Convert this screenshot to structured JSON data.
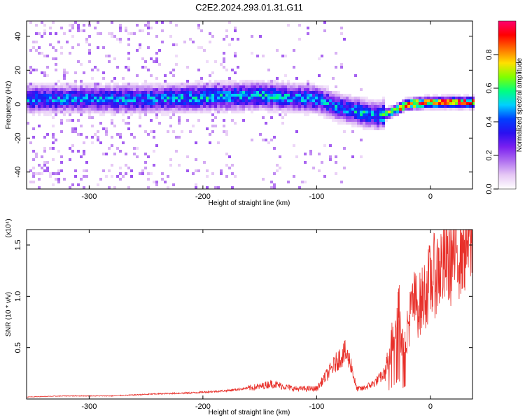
{
  "page_title": "C2E2.2024.293.01.31.G11",
  "chart_data": [
    {
      "type": "heatmap",
      "xlabel": "Height of straight line (km)",
      "ylabel": "Frequency (Hz)",
      "xlim": [
        -355,
        37
      ],
      "ylim": [
        -50,
        49
      ],
      "xticks": [
        -300,
        -200,
        -100,
        0
      ],
      "yticks": [
        -40,
        -20,
        0,
        20,
        40
      ],
      "colorbar": {
        "label": "Normalized spectral amplitude",
        "range": [
          0,
          1
        ],
        "ticks": [
          "0.0",
          "0.2",
          "0.4",
          "0.6",
          "0.8"
        ],
        "tick_values": [
          0.0,
          0.2,
          0.4,
          0.6,
          0.8
        ],
        "colormap": [
          "#ffffff",
          "#e6c8f5",
          "#b070f0",
          "#7a20f0",
          "#2a10f0",
          "#0040ff",
          "#00d0ff",
          "#00ff80",
          "#80ff00",
          "#ffe000",
          "#ff7000",
          "#ff0000",
          "#ff0070"
        ]
      },
      "ridge": {
        "x": [
          -250,
          -200,
          -150,
          -100,
          -80,
          -60,
          -45,
          -35,
          -20,
          0,
          20,
          37
        ],
        "frequency": [
          3,
          4,
          5,
          3,
          -2,
          -5,
          -7,
          -5,
          0,
          1,
          1,
          1
        ],
        "peak_amplitude": [
          0.45,
          0.5,
          0.5,
          0.45,
          0.45,
          0.5,
          0.45,
          0.7,
          0.85,
          0.9,
          0.9,
          0.9
        ]
      }
    },
    {
      "type": "line",
      "xlabel": "Height of straight line (km)",
      "ylabel": "SNR (10 * v/v)",
      "multiplier": "(x10⁴)",
      "xlim": [
        -355,
        37
      ],
      "ylim": [
        0,
        1.65
      ],
      "xticks": [
        -300,
        -200,
        -100,
        0
      ],
      "yticks": [
        0.5,
        1.0,
        1.5
      ],
      "ytick_labels": [
        "0.5",
        "1.0",
        "1.5"
      ],
      "series": [
        {
          "color": "#e8302a",
          "x": [
            -355,
            -320,
            -280,
            -240,
            -210,
            -180,
            -150,
            -140,
            -120,
            -100,
            -90,
            -80,
            -75,
            -70,
            -65,
            -60,
            -50,
            -40,
            -35,
            -30,
            -28,
            -25,
            -20,
            -15,
            -10,
            0,
            10,
            20,
            30,
            37
          ],
          "y": [
            0.02,
            0.03,
            0.03,
            0.05,
            0.06,
            0.08,
            0.12,
            0.15,
            0.1,
            0.1,
            0.25,
            0.4,
            0.45,
            0.35,
            0.1,
            0.1,
            0.15,
            0.25,
            0.5,
            0.8,
            1.0,
            0.5,
            0.7,
            0.95,
            0.9,
            1.15,
            1.3,
            1.4,
            1.55,
            1.6
          ]
        }
      ]
    }
  ]
}
